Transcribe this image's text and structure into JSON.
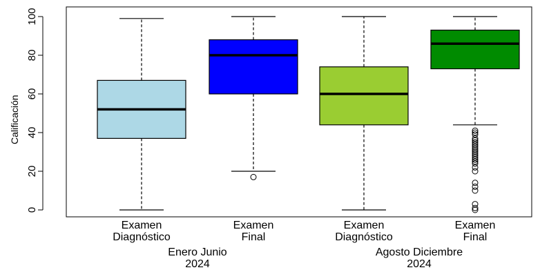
{
  "chart_data": {
    "type": "boxplot",
    "ylabel": "Calificación",
    "xlabel": "",
    "title": "",
    "ylim": [
      0,
      100
    ],
    "yticks": [
      "0",
      "20",
      "40",
      "60",
      "80",
      "100"
    ],
    "grid": false,
    "legend": "none",
    "categories": [
      {
        "line1": "Examen",
        "line2": "Diagnóstico"
      },
      {
        "line1": "Examen",
        "line2": "Final"
      },
      {
        "line1": "Examen",
        "line2": "Diagnóstico"
      },
      {
        "line1": "Examen",
        "line2": "Final"
      }
    ],
    "groups": [
      {
        "line1": "Enero Junio",
        "line2": "2024"
      },
      {
        "line1": "Agosto Diciembre",
        "line2": "2024"
      }
    ],
    "boxes": [
      {
        "color": "#add8e6",
        "min": 0,
        "q1": 37,
        "median": 52,
        "q3": 67,
        "max": 99,
        "outliers": []
      },
      {
        "color": "#0000ff",
        "min": 20,
        "q1": 60,
        "median": 80,
        "q3": 88,
        "max": 100,
        "outliers": [
          17
        ]
      },
      {
        "color": "#9acd32",
        "min": 0,
        "q1": 44,
        "median": 60,
        "q3": 74,
        "max": 100,
        "outliers": []
      },
      {
        "color": "#008b00",
        "min": 44,
        "q1": 73,
        "median": 86,
        "q3": 93,
        "max": 100,
        "outliers": [
          41,
          40,
          39,
          37,
          36,
          35,
          34,
          33,
          32,
          31,
          30,
          29,
          28,
          27,
          26,
          25,
          24,
          22,
          20,
          14,
          12,
          10,
          3,
          1,
          0
        ]
      }
    ]
  }
}
